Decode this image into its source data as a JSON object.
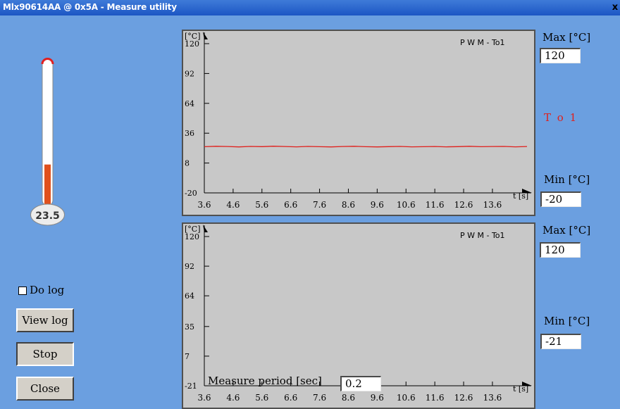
{
  "window": {
    "title": "Mlx90614AA @ 0x5A - Measure utility",
    "close_glyph": "x"
  },
  "thermometer": {
    "value": "23.5",
    "level": 0.2875,
    "fill_color": "#e0501c"
  },
  "charts": [
    {
      "chart_data": {
        "type": "line",
        "title": "P W M - To1",
        "ylabel": "[°C]",
        "xlabel": "t [s]",
        "y_ticks": [
          "120",
          "92",
          "64",
          "36",
          "8",
          "-20"
        ],
        "y_tick_values": [
          120,
          92,
          64,
          36,
          8,
          -20
        ],
        "x_ticks": [
          "3.6",
          "4.6",
          "5.6",
          "6.6",
          "7.6",
          "8.6",
          "9.6",
          "10.6",
          "11.6",
          "12.6",
          "13.6"
        ],
        "x_tick_values": [
          3.6,
          4.6,
          5.6,
          6.6,
          7.6,
          8.6,
          9.6,
          10.6,
          11.6,
          12.6,
          13.6
        ],
        "ylim": [
          -20,
          120
        ],
        "xlim": [
          3.6,
          14.8
        ],
        "series": [
          {
            "color": "#e0201c",
            "x": [
              3.6,
              4.0,
              4.4,
              4.8,
              5.2,
              5.6,
              6.0,
              6.4,
              6.8,
              7.2,
              7.6,
              8.0,
              8.4,
              8.8,
              9.2,
              9.6,
              10.0,
              10.4,
              10.8,
              11.2,
              11.6,
              12.0,
              12.4,
              12.8,
              13.2,
              13.6,
              14.0,
              14.4,
              14.8
            ],
            "y": [
              23.3,
              23.7,
              23.5,
              23.1,
              23.6,
              23.4,
              23.8,
              23.5,
              23.2,
              23.6,
              23.3,
              23.1,
              23.5,
              23.7,
              23.3,
              23.1,
              23.4,
              23.6,
              23.2,
              23.3,
              23.5,
              23.2,
              23.4,
              23.7,
              23.3,
              23.5,
              23.6,
              23.2,
              23.5
            ]
          }
        ]
      }
    },
    {
      "chart_data": {
        "type": "line",
        "title": "P W M - To1",
        "ylabel": "[°C]",
        "xlabel": "t [s]",
        "y_ticks": [
          "120",
          "92",
          "64",
          "35",
          "7",
          "-21"
        ],
        "y_tick_values": [
          120,
          92,
          64,
          35,
          7,
          -21
        ],
        "x_ticks": [
          "3.6",
          "4.6",
          "5.6",
          "6.6",
          "7.6",
          "8.6",
          "9.6",
          "10.6",
          "11.6",
          "12.6",
          "13.6"
        ],
        "x_tick_values": [
          3.6,
          4.6,
          5.6,
          6.6,
          7.6,
          8.6,
          9.6,
          10.6,
          11.6,
          12.6,
          13.6
        ],
        "ylim": [
          -21,
          120
        ],
        "xlim": [
          3.6,
          14.8
        ],
        "series": []
      }
    }
  ],
  "right_panel": {
    "top": {
      "max_label": "Max [°C]",
      "max_value": "120",
      "series_label": "T o 1",
      "min_label": "Min [°C]",
      "min_value": "-20"
    },
    "bottom": {
      "max_label": "Max [°C]",
      "max_value": "120",
      "min_label": "Min [°C]",
      "min_value": "-21"
    }
  },
  "controls": {
    "do_log_label": "Do log",
    "do_log_checked": false,
    "view_log_label": "View log",
    "stop_label": "Stop",
    "close_label": "Close"
  },
  "measure_period": {
    "label": "Measure period [sec]",
    "value": "0.2"
  }
}
